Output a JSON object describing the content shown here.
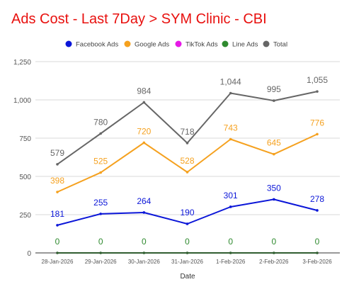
{
  "chart_data": {
    "type": "line",
    "title": "Ads Cost - Last 7Day > SYM Clinic - CBI",
    "xlabel": "Date",
    "ylabel": "",
    "categories": [
      "28-Jan-2026",
      "29-Jan-2026",
      "30-Jan-2026",
      "31-Jan-2026",
      "1-Feb-2026",
      "2-Feb-2026",
      "3-Feb-2026"
    ],
    "ylim": [
      0,
      1250
    ],
    "yticks": [
      0,
      250,
      500,
      750,
      1000,
      1250
    ],
    "ytick_labels": [
      "0",
      "250",
      "500",
      "750",
      "1,000",
      "1,250"
    ],
    "grid": true,
    "legend_position": "top",
    "series": [
      {
        "name": "Facebook Ads",
        "color": "#0b16d8",
        "values": [
          181,
          255,
          264,
          190,
          301,
          350,
          278
        ],
        "labels": [
          "181",
          "255",
          "264",
          "190",
          "301",
          "350",
          "278"
        ]
      },
      {
        "name": "Google Ads",
        "color": "#f5a11f",
        "values": [
          398,
          525,
          720,
          528,
          743,
          645,
          776
        ],
        "labels": [
          "398",
          "525",
          "720",
          "528",
          "743",
          "645",
          "776"
        ]
      },
      {
        "name": "TikTok Ads",
        "color": "#e619e6",
        "values": [
          0,
          0,
          0,
          0,
          0,
          0,
          0
        ],
        "labels": [
          "",
          "",
          "",
          "",
          "",
          "",
          ""
        ]
      },
      {
        "name": "Line Ads",
        "color": "#2f8a2f",
        "values": [
          0,
          0,
          0,
          0,
          0,
          0,
          0
        ],
        "labels": [
          "0",
          "0",
          "0",
          "0",
          "0",
          "0",
          "0"
        ]
      },
      {
        "name": "Total",
        "color": "#666666",
        "values": [
          579,
          780,
          984,
          718,
          1044,
          995,
          1055
        ],
        "labels": [
          "579",
          "780",
          "984",
          "718",
          "1,044",
          "995",
          "1,055"
        ]
      }
    ]
  }
}
